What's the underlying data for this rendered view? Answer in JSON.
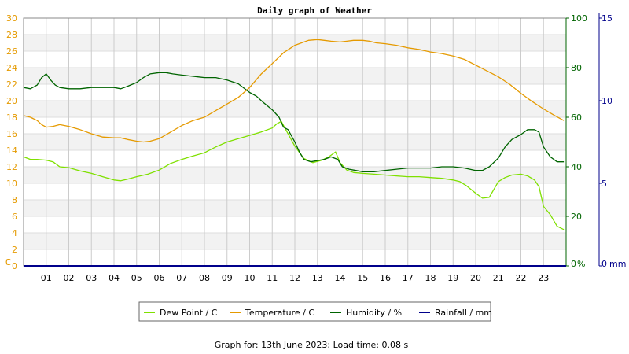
{
  "chart_data": {
    "type": "line",
    "title": "Daily graph of Weather",
    "footer": "Graph for: 13th June 2023; Load time: 0.08 s",
    "grid": true,
    "legend_placement": "bottom-center",
    "x_axis": {
      "range_hours": [
        0,
        24
      ],
      "ticks": [
        "01",
        "02",
        "03",
        "04",
        "05",
        "06",
        "07",
        "08",
        "09",
        "10",
        "11",
        "12",
        "13",
        "14",
        "15",
        "16",
        "17",
        "18",
        "19",
        "20",
        "21",
        "22",
        "23"
      ]
    },
    "y_axes": {
      "left": {
        "unit": "C",
        "min": 0,
        "max": 30,
        "ticks": [
          "0",
          "2",
          "4",
          "6",
          "8",
          "10",
          "12",
          "14",
          "16",
          "18",
          "20",
          "22",
          "24",
          "26",
          "28",
          "30"
        ],
        "color": "#e59a00"
      },
      "right1": {
        "unit": "%",
        "min": 0,
        "max": 100,
        "ticks": [
          "0",
          "20",
          "40",
          "60",
          "80",
          "100"
        ],
        "color": "#006400"
      },
      "right2": {
        "unit": "mm",
        "min": 0,
        "max": 15,
        "ticks": [
          "0",
          "5",
          "10",
          "15"
        ],
        "color": "#00008b"
      }
    },
    "series": [
      {
        "name": "Dew Point / C",
        "color": "#7fe000",
        "axis": "left",
        "x": [
          0,
          0.3,
          0.6,
          1,
          1.3,
          1.6,
          2,
          2.5,
          3,
          3.5,
          4,
          4.3,
          4.6,
          5,
          5.5,
          6,
          6.5,
          7,
          7.5,
          8,
          8.5,
          9,
          9.5,
          10,
          10.5,
          11,
          11.2,
          11.4,
          11.6,
          12,
          12.4,
          12.8,
          13.2,
          13.5,
          13.8,
          14,
          14.3,
          14.6,
          15,
          15.5,
          16,
          16.5,
          17,
          17.5,
          18,
          18.5,
          19,
          19.3,
          19.6,
          20,
          20.3,
          20.6,
          21,
          21.3,
          21.6,
          22,
          22.3,
          22.6,
          22.8,
          23,
          23.3,
          23.6,
          23.9
        ],
        "values": [
          13.2,
          12.9,
          12.9,
          12.8,
          12.6,
          12.0,
          11.9,
          11.5,
          11.2,
          10.8,
          10.4,
          10.3,
          10.5,
          10.8,
          11.1,
          11.6,
          12.4,
          12.9,
          13.3,
          13.7,
          14.4,
          15.0,
          15.4,
          15.8,
          16.2,
          16.7,
          17.2,
          17.5,
          16.5,
          14.5,
          13.0,
          12.5,
          12.8,
          13.2,
          13.8,
          12.5,
          11.6,
          11.3,
          11.2,
          11.1,
          11.0,
          10.9,
          10.8,
          10.8,
          10.7,
          10.6,
          10.4,
          10.2,
          9.7,
          8.8,
          8.2,
          8.3,
          10.2,
          10.7,
          11.0,
          11.1,
          10.9,
          10.4,
          9.6,
          7.2,
          6.2,
          4.8,
          4.4
        ]
      },
      {
        "name": "Temperature / C",
        "color": "#e59a00",
        "axis": "left",
        "x": [
          0,
          0.3,
          0.6,
          0.8,
          1,
          1.3,
          1.6,
          2,
          2.5,
          3,
          3.5,
          4,
          4.3,
          4.6,
          5,
          5.3,
          5.6,
          6,
          6.5,
          7,
          7.5,
          8,
          8.5,
          9,
          9.5,
          10,
          10.5,
          11,
          11.5,
          12,
          12.3,
          12.6,
          13,
          13.3,
          13.6,
          14,
          14.3,
          14.6,
          15,
          15.3,
          15.6,
          16,
          16.5,
          17,
          17.5,
          18,
          18.5,
          19,
          19.5,
          20,
          20.5,
          21,
          21.5,
          22,
          22.5,
          23,
          23.5,
          23.9
        ],
        "values": [
          18.2,
          18.0,
          17.6,
          17.1,
          16.8,
          16.9,
          17.1,
          16.9,
          16.5,
          16.0,
          15.6,
          15.5,
          15.5,
          15.3,
          15.1,
          15.0,
          15.1,
          15.4,
          16.2,
          17.0,
          17.6,
          18.0,
          18.8,
          19.6,
          20.4,
          21.6,
          23.2,
          24.5,
          25.8,
          26.7,
          27.0,
          27.3,
          27.4,
          27.3,
          27.2,
          27.1,
          27.2,
          27.3,
          27.3,
          27.2,
          27.0,
          26.9,
          26.7,
          26.4,
          26.2,
          25.9,
          25.7,
          25.4,
          25.0,
          24.3,
          23.6,
          22.9,
          22.0,
          20.9,
          19.9,
          19.0,
          18.2,
          17.6
        ]
      },
      {
        "name": "Humidity / %",
        "color": "#006400",
        "axis": "right1",
        "x": [
          0,
          0.3,
          0.6,
          0.8,
          1,
          1.2,
          1.4,
          1.6,
          2,
          2.5,
          3,
          3.5,
          4,
          4.3,
          4.6,
          5,
          5.3,
          5.6,
          6,
          6.3,
          6.6,
          7,
          7.5,
          8,
          8.5,
          9,
          9.5,
          10,
          10.3,
          10.6,
          11,
          11.3,
          11.5,
          11.7,
          12,
          12.2,
          12.4,
          12.7,
          13,
          13.3,
          13.6,
          13.9,
          14.1,
          14.4,
          14.7,
          15,
          15.5,
          16,
          16.5,
          17,
          17.5,
          18,
          18.5,
          19,
          19.5,
          20,
          20.3,
          20.6,
          21,
          21.3,
          21.6,
          22,
          22.3,
          22.6,
          22.8,
          23,
          23.3,
          23.6,
          23.9
        ],
        "values": [
          72,
          71.5,
          73,
          76,
          77.5,
          75,
          73,
          72,
          71.5,
          71.5,
          72,
          72,
          72,
          71.5,
          72.5,
          74,
          76,
          77.5,
          78,
          78,
          77.5,
          77,
          76.5,
          76,
          76,
          75,
          73.5,
          70,
          68.5,
          66,
          63,
          60,
          56,
          55,
          50,
          46,
          43,
          42,
          42.5,
          43,
          44,
          43,
          40,
          39,
          38.5,
          38,
          38,
          38.5,
          39,
          39.5,
          39.5,
          39.5,
          40,
          40,
          39.5,
          38.5,
          38.5,
          40,
          43.5,
          48,
          51,
          53,
          55,
          55,
          54,
          48,
          44,
          42,
          42
        ]
      },
      {
        "name": "Rainfall / mm",
        "color": "#00008b",
        "axis": "right2",
        "x": [
          0,
          24
        ],
        "values": [
          0,
          0
        ]
      }
    ]
  }
}
